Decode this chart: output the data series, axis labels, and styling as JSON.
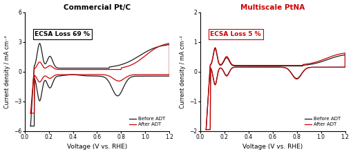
{
  "left_title": "Commercial Pt/C",
  "right_title": "Multiscale PtNA",
  "right_title_color": "#cc0000",
  "left_annotation": "ECSA Loss 69 %",
  "right_annotation": "ECSA Loss 5 %",
  "right_annotation_color": "#cc0000",
  "left_ann_color": "#000000",
  "left_ann_border": "#000000",
  "xlabel": "Voltage (V vs. RHE)",
  "ylabel": "Current density / mA cm⁻²",
  "left_xlim": [
    0.0,
    1.2
  ],
  "left_ylim": [
    -6,
    6
  ],
  "right_xlim": [
    0.0,
    1.2
  ],
  "right_ylim": [
    -2,
    2
  ],
  "left_yticks": [
    -6,
    -3,
    0,
    3,
    6
  ],
  "right_yticks": [
    -2,
    -1,
    0,
    1,
    2
  ],
  "xticks": [
    0.0,
    0.2,
    0.4,
    0.6,
    0.8,
    1.0,
    1.2
  ],
  "before_color": "#1a1a1a",
  "after_color": "#cc0000",
  "legend_before": "Before ADT",
  "legend_after": "After ADT"
}
